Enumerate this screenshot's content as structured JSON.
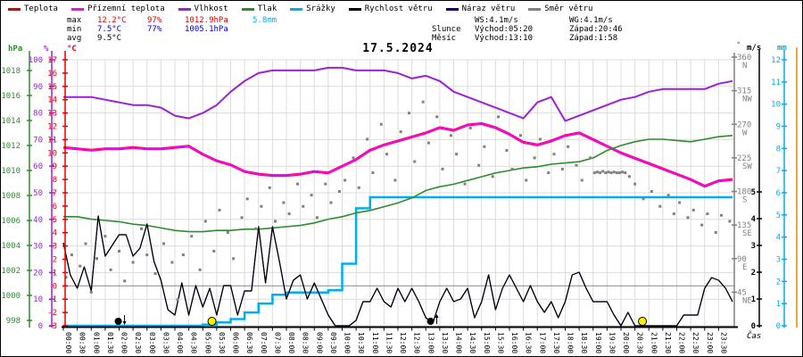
{
  "title": "17.5.2024",
  "colors": {
    "teplota": "#dd0000",
    "prizemni": "#ff00ff",
    "vlhkost": "#9d1fd6",
    "tlak": "#2e8b2e",
    "srazky": "#00aeef",
    "vitr": "#000000",
    "naraz": "#000099",
    "smer": "#808080",
    "grid": "#dcdcdc",
    "zeroline": "#888888",
    "min_text": "#0000cc",
    "max_text": "#dd0000",
    "orange_rail": "#dd8800",
    "sun": "#ffee00",
    "moon": "#000000",
    "mm_axis": "#00aeef",
    "deg_axis": "#808080"
  },
  "legend": {
    "items": [
      {
        "label": "Teplota",
        "color": "#dd0000"
      },
      {
        "label": "Přízemní teplota",
        "color": "#ff00ff"
      },
      {
        "label": "Vlhkost",
        "color": "#9d1fd6"
      },
      {
        "label": "Tlak",
        "color": "#2e8b2e"
      },
      {
        "label": "Srážky",
        "color": "#00aeef"
      },
      {
        "label": "Rychlost větru",
        "color": "#000000"
      },
      {
        "label": "Náraz větru",
        "color": "#000099"
      },
      {
        "label": "Směr větru",
        "color": "#808080"
      }
    ]
  },
  "stats": {
    "widths": [
      34,
      56,
      42,
      76,
      48
    ],
    "rows": [
      [
        {
          "t": "max",
          "c": "#000000"
        },
        {
          "t": "12.2°C",
          "c": "#dd0000"
        },
        {
          "t": "97%",
          "c": "#dd0000"
        },
        {
          "t": "1012.9hPa",
          "c": "#dd0000"
        },
        {
          "t": "5.8mm",
          "c": "#00aeef"
        }
      ],
      [
        {
          "t": "min",
          "c": "#000000"
        },
        {
          "t": "7.5°C",
          "c": "#0000cc"
        },
        {
          "t": "77%",
          "c": "#0000cc"
        },
        {
          "t": "1005.1hPa",
          "c": "#0000cc"
        },
        {
          "t": "",
          "c": "#000000"
        }
      ],
      [
        {
          "t": "avg",
          "c": "#000000"
        },
        {
          "t": "9.5°C",
          "c": "#000000"
        },
        {
          "t": "",
          "c": "#000000"
        },
        {
          "t": "",
          "c": "#000000"
        },
        {
          "t": "",
          "c": "#000000"
        }
      ]
    ]
  },
  "astro": {
    "widths": [
      48,
      106,
      100
    ],
    "rows": [
      [
        "",
        "WS:4.1m/s",
        "WG:4.1m/s"
      ],
      [
        "Slunce",
        "Východ:05:20",
        "Západ:20:46"
      ],
      [
        "Měsíc",
        "Východ:13:10",
        "Západ:1:58"
      ]
    ]
  },
  "chart_data": {
    "type": "line",
    "xlabel": "Čas",
    "x_ticks": [
      "00:00",
      "00:30",
      "01:00",
      "01:30",
      "02:00",
      "02:30",
      "03:00",
      "03:30",
      "04:00",
      "04:30",
      "05:00",
      "05:30",
      "06:00",
      "06:30",
      "07:00",
      "07:30",
      "08:00",
      "08:30",
      "09:00",
      "09:30",
      "10:00",
      "10:30",
      "11:00",
      "11:30",
      "12:00",
      "12:30",
      "13:00",
      "13:30",
      "14:00",
      "14:30",
      "15:00",
      "15:30",
      "16:00",
      "16:30",
      "17:00",
      "17:30",
      "18:00",
      "18:30",
      "19:00",
      "19:30",
      "20:00",
      "20:30",
      "21:00",
      "21:30",
      "22:00",
      "22:30",
      "23:00",
      "23:30"
    ],
    "axes": {
      "hpa": {
        "unit": "hPa",
        "min": 998,
        "max": 1018,
        "tick": 2,
        "color": "#2e8b2e"
      },
      "pct": {
        "unit": "%",
        "min": 0,
        "max": 100,
        "tick": 10,
        "color": "#9d1fd6"
      },
      "degc": {
        "unit": "°C",
        "min": -3,
        "max": 17,
        "tick": 1,
        "color": "#dd0000"
      },
      "wdir": {
        "unit": "°",
        "min": 0,
        "max": 360,
        "tick": 45,
        "color": "#808080",
        "compass": {
          "360": "N",
          "315": "NW",
          "270": "W",
          "225": "SW",
          "180": "S",
          "135": "SE",
          "90": "E",
          "45": "NE"
        }
      },
      "ms": {
        "unit": "m/s",
        "min": 0,
        "max": 5,
        "tick": 1,
        "color": "#000000"
      },
      "mm": {
        "unit": "mm",
        "min": 0,
        "max": 12,
        "tick": 1,
        "color": "#00aeef"
      }
    },
    "series": [
      {
        "name": "Teplota",
        "axis": "degc",
        "step_h": 0.5,
        "color": "#dd0000",
        "width": 3,
        "values": [
          10.4,
          10.3,
          10.2,
          10.3,
          10.3,
          10.4,
          10.3,
          10.3,
          10.4,
          10.5,
          9.9,
          9.4,
          9.1,
          8.6,
          8.4,
          8.3,
          8.3,
          8.4,
          8.6,
          8.5,
          9.0,
          9.5,
          10.2,
          10.6,
          10.9,
          11.2,
          11.5,
          11.9,
          11.7,
          12.1,
          12.2,
          11.9,
          11.4,
          10.8,
          10.6,
          10.9,
          11.3,
          11.5,
          11.0,
          10.5,
          10.0,
          9.6,
          9.2,
          8.8,
          8.4,
          8.0,
          7.5,
          7.9,
          8.0
        ]
      },
      {
        "name": "Přízemní teplota",
        "axis": "degc",
        "step_h": 0.5,
        "color": "#ff00ff",
        "width": 2,
        "values": [
          10.4,
          10.3,
          10.2,
          10.3,
          10.3,
          10.4,
          10.3,
          10.3,
          10.4,
          10.5,
          9.9,
          9.4,
          9.1,
          8.6,
          8.4,
          8.3,
          8.3,
          8.4,
          8.6,
          8.5,
          9.0,
          9.5,
          10.2,
          10.6,
          10.9,
          11.2,
          11.5,
          11.9,
          11.7,
          12.1,
          12.2,
          11.9,
          11.4,
          10.8,
          10.6,
          10.9,
          11.3,
          11.5,
          11.0,
          10.5,
          10.0,
          9.6,
          9.2,
          8.8,
          8.4,
          8.0,
          7.5,
          7.9,
          8.0
        ]
      },
      {
        "name": "Vlhkost",
        "axis": "pct",
        "step_h": 0.5,
        "color": "#9d1fd6",
        "width": 2,
        "values": [
          86,
          86,
          86,
          85,
          84,
          83,
          83,
          82,
          79,
          78,
          80,
          83,
          88,
          92,
          95,
          96,
          96,
          96,
          96,
          97,
          97,
          96,
          96,
          96,
          95,
          93,
          94,
          92,
          88,
          86,
          84,
          82,
          80,
          78,
          84,
          86,
          77,
          79,
          81,
          83,
          85,
          86,
          88,
          89,
          89,
          89,
          89,
          91,
          92
        ]
      },
      {
        "name": "Tlak",
        "axis": "hpa",
        "step_h": 0.5,
        "color": "#2e8b2e",
        "width": 1.6,
        "values": [
          1006.3,
          1006.3,
          1006.1,
          1006.0,
          1005.9,
          1005.7,
          1005.6,
          1005.4,
          1005.2,
          1005.1,
          1005.1,
          1005.2,
          1005.2,
          1005.3,
          1005.3,
          1005.4,
          1005.5,
          1005.6,
          1005.8,
          1006.1,
          1006.3,
          1006.6,
          1006.8,
          1007.1,
          1007.4,
          1007.8,
          1008.4,
          1008.7,
          1008.9,
          1009.2,
          1009.5,
          1009.8,
          1010.0,
          1010.2,
          1010.3,
          1010.5,
          1010.6,
          1010.7,
          1011.0,
          1011.6,
          1012.0,
          1012.3,
          1012.5,
          1012.5,
          1012.4,
          1012.3,
          1012.5,
          1012.7,
          1012.8
        ]
      },
      {
        "name": "Náraz větru",
        "axis": "ms",
        "step_h": 0.25,
        "color": "#000099",
        "width": 1.2,
        "values": [
          3.1,
          1.9,
          1.4,
          2.2,
          1.3,
          4.1,
          2.6,
          3.0,
          3.4,
          3.4,
          2.6,
          2.9,
          3.8,
          2.4,
          1.7,
          0.6,
          0.4,
          1.6,
          0.4,
          1.5,
          0.7,
          1.4,
          0.4,
          1.5,
          1.5,
          0.4,
          1.3,
          1.3,
          3.7,
          1.6,
          3.7,
          2.4,
          1.0,
          1.7,
          1.9,
          1.0,
          1.6,
          1.0,
          0.4,
          0.0,
          0.0,
          0.0,
          0.2,
          0.9,
          0.9,
          1.4,
          0.9,
          0.7,
          1.4,
          0.9,
          1.4,
          0.9,
          0.3,
          0.1,
          0.9,
          1.4,
          0.9,
          1.0,
          1.4,
          0.3,
          0.9,
          1.9,
          0.6,
          1.4,
          1.9,
          1.4,
          0.9,
          1.5,
          0.9,
          0.5,
          0.9,
          0.3,
          0.9,
          1.9,
          2.0,
          1.4,
          0.9,
          0.9,
          0.9,
          0.4,
          0.0,
          0.5,
          0.0,
          0.0,
          0.0,
          0.0,
          0.0,
          0.0,
          0.0,
          0.4,
          0.4,
          0.4,
          1.4,
          1.8,
          1.7,
          1.4,
          0.9
        ]
      },
      {
        "name": "Rychlost větru",
        "axis": "ms",
        "step_h": 0.25,
        "color": "#000000",
        "width": 1.2,
        "values": [
          3.1,
          1.9,
          1.4,
          2.2,
          1.3,
          4.1,
          2.6,
          3.0,
          3.4,
          3.4,
          2.6,
          2.9,
          3.8,
          2.4,
          1.7,
          0.6,
          0.4,
          1.6,
          0.4,
          1.5,
          0.7,
          1.4,
          0.4,
          1.5,
          1.5,
          0.4,
          1.3,
          1.3,
          3.7,
          1.6,
          3.7,
          2.4,
          1.0,
          1.7,
          1.9,
          1.0,
          1.6,
          1.0,
          0.4,
          0.0,
          0.0,
          0.0,
          0.2,
          0.9,
          0.9,
          1.4,
          0.9,
          0.7,
          1.4,
          0.9,
          1.4,
          0.9,
          0.3,
          0.1,
          0.9,
          1.4,
          0.9,
          1.0,
          1.4,
          0.3,
          0.9,
          1.9,
          0.6,
          1.4,
          1.9,
          1.4,
          0.9,
          1.5,
          0.9,
          0.5,
          0.9,
          0.3,
          0.9,
          1.9,
          2.0,
          1.4,
          0.9,
          0.9,
          0.9,
          0.4,
          0.0,
          0.5,
          0.0,
          0.0,
          0.0,
          0.0,
          0.0,
          0.0,
          0.0,
          0.4,
          0.4,
          0.4,
          1.4,
          1.8,
          1.7,
          1.4,
          0.9
        ]
      }
    ],
    "precip_step": {
      "name": "Srážky",
      "axis": "mm",
      "step_h": 0.5,
      "color": "#00aeef",
      "width": 2.5,
      "values": [
        0,
        0,
        0,
        0,
        0,
        0,
        0,
        0,
        0,
        0,
        0.05,
        0.15,
        0.3,
        0.6,
        1.0,
        1.4,
        1.5,
        1.5,
        1.5,
        1.6,
        2.8,
        5.3,
        5.8,
        5.8,
        5.8,
        5.8,
        5.8,
        5.8,
        5.8,
        5.8,
        5.8,
        5.8,
        5.8,
        5.8,
        5.8,
        5.8,
        5.8,
        5.8,
        5.8,
        5.8,
        5.8,
        5.8,
        5.8,
        5.8,
        5.8,
        5.8,
        5.8,
        5.8,
        5.8
      ]
    },
    "wind_dir_scatter": {
      "name": "Směr větru",
      "axis": "wdir",
      "color": "#808080",
      "points": [
        [
          0.1,
          65
        ],
        [
          0.3,
          95
        ],
        [
          0.6,
          80
        ],
        [
          0.8,
          110
        ],
        [
          1.0,
          45
        ],
        [
          1.2,
          90
        ],
        [
          1.5,
          120
        ],
        [
          1.7,
          75
        ],
        [
          2.0,
          100
        ],
        [
          2.2,
          60
        ],
        [
          2.5,
          85
        ],
        [
          2.8,
          130
        ],
        [
          3.0,
          95
        ],
        [
          3.3,
          70
        ],
        [
          3.6,
          110
        ],
        [
          3.9,
          85
        ],
        [
          4.1,
          35
        ],
        [
          4.3,
          95
        ],
        [
          4.6,
          120
        ],
        [
          4.9,
          75
        ],
        [
          5.1,
          140
        ],
        [
          5.4,
          100
        ],
        [
          5.6,
          155
        ],
        [
          5.9,
          125
        ],
        [
          6.1,
          90
        ],
        [
          6.4,
          145
        ],
        [
          6.6,
          170
        ],
        [
          6.9,
          130
        ],
        [
          7.1,
          160
        ],
        [
          7.4,
          185
        ],
        [
          7.6,
          140
        ],
        [
          7.9,
          165
        ],
        [
          8.1,
          150
        ],
        [
          8.4,
          190
        ],
        [
          8.6,
          160
        ],
        [
          8.9,
          175
        ],
        [
          9.1,
          145
        ],
        [
          9.4,
          190
        ],
        [
          9.6,
          165
        ],
        [
          9.9,
          180
        ],
        [
          10.1,
          195
        ],
        [
          10.4,
          225
        ],
        [
          10.6,
          185
        ],
        [
          10.9,
          250
        ],
        [
          11.1,
          205
        ],
        [
          11.4,
          270
        ],
        [
          11.6,
          230
        ],
        [
          11.9,
          195
        ],
        [
          12.1,
          260
        ],
        [
          12.4,
          285
        ],
        [
          12.6,
          220
        ],
        [
          12.9,
          300
        ],
        [
          13.1,
          245
        ],
        [
          13.4,
          280
        ],
        [
          13.6,
          210
        ],
        [
          13.9,
          255
        ],
        [
          14.1,
          230
        ],
        [
          14.4,
          190
        ],
        [
          14.6,
          265
        ],
        [
          14.9,
          215
        ],
        [
          15.1,
          240
        ],
        [
          15.4,
          200
        ],
        [
          15.6,
          280
        ],
        [
          15.9,
          235
        ],
        [
          16.1,
          210
        ],
        [
          16.4,
          255
        ],
        [
          16.6,
          195
        ],
        [
          16.9,
          225
        ],
        [
          17.1,
          250
        ],
        [
          17.4,
          205
        ],
        [
          17.6,
          230
        ],
        [
          17.9,
          210
        ],
        [
          18.1,
          240
        ],
        [
          18.4,
          215
        ],
        [
          18.6,
          195
        ],
        [
          18.9,
          225
        ],
        [
          19.05,
          205
        ],
        [
          19.15,
          206
        ],
        [
          19.25,
          205
        ],
        [
          19.35,
          207
        ],
        [
          19.45,
          205
        ],
        [
          19.55,
          206
        ],
        [
          19.65,
          205
        ],
        [
          19.75,
          206
        ],
        [
          19.85,
          205
        ],
        [
          19.95,
          205
        ],
        [
          20.05,
          206
        ],
        [
          20.15,
          205
        ],
        [
          20.3,
          200
        ],
        [
          20.5,
          190
        ],
        [
          20.8,
          170
        ],
        [
          21.1,
          180
        ],
        [
          21.4,
          160
        ],
        [
          21.7,
          175
        ],
        [
          21.9,
          150
        ],
        [
          22.1,
          165
        ],
        [
          22.4,
          145
        ],
        [
          22.6,
          155
        ],
        [
          22.9,
          135
        ],
        [
          23.1,
          150
        ],
        [
          23.4,
          125
        ],
        [
          23.6,
          148
        ],
        [
          23.9,
          140
        ]
      ]
    },
    "markers": [
      {
        "h": 1.97,
        "type": "moon",
        "arrow": "down"
      },
      {
        "h": 5.33,
        "type": "sun",
        "arrow": ""
      },
      {
        "h": 13.17,
        "type": "moon",
        "arrow": "up"
      },
      {
        "h": 20.77,
        "type": "sun",
        "arrow": ""
      }
    ],
    "grid": true,
    "zero_line_degc": 0
  }
}
